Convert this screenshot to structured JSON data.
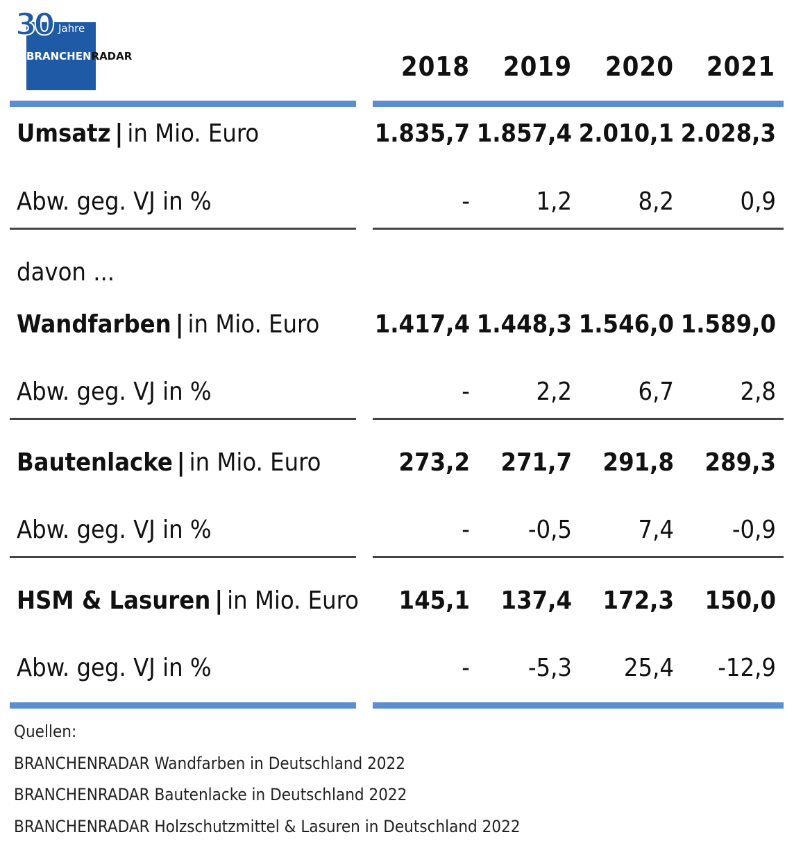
{
  "logo": {
    "number": "30",
    "jahre": "Jahre",
    "brand_a": "BRANCHEN",
    "brand_b": "RADAR"
  },
  "chart_data": {
    "type": "table",
    "years": [
      "2018",
      "2019",
      "2020",
      "2021"
    ],
    "rows": [
      {
        "label": "Umsatz",
        "unit": "in Mio. Euro",
        "values": [
          "1.835,7",
          "1.857,4",
          "2.010,1",
          "2.028,3"
        ]
      },
      {
        "label": "Abw. geg. VJ in %",
        "values": [
          "-",
          "1,2",
          "8,2",
          "0,9"
        ]
      },
      {
        "label": "davon ...",
        "values": []
      },
      {
        "label": "Wandfarben",
        "unit": "in Mio. Euro",
        "values": [
          "1.417,4",
          "1.448,3",
          "1.546,0",
          "1.589,0"
        ]
      },
      {
        "label": "Abw. geg. VJ in %",
        "values": [
          "-",
          "2,2",
          "6,7",
          "2,8"
        ]
      },
      {
        "label": "Bautenlacke",
        "unit": "in Mio. Euro",
        "values": [
          "273,2",
          "271,7",
          "291,8",
          "289,3"
        ]
      },
      {
        "label": "Abw. geg. VJ in %",
        "values": [
          "-",
          "-0,5",
          "7,4",
          "-0,9"
        ]
      },
      {
        "label": "HSM & Lasuren",
        "unit": "in Mio. Euro",
        "values": [
          "145,1",
          "137,4",
          "172,3",
          "150,0"
        ]
      },
      {
        "label": "Abw. geg. VJ in %",
        "values": [
          "-",
          "-5,3",
          "25,4",
          "-12,9"
        ]
      }
    ],
    "sources": [
      "Quellen:",
      "BRANCHENRADAR Wandfarben in Deutschland 2022",
      "BRANCHENRADAR Bautenlacke in Deutschland 2022",
      "BRANCHENRADAR Holzschutzmittel & Lasuren in Deutschland 2022"
    ]
  }
}
